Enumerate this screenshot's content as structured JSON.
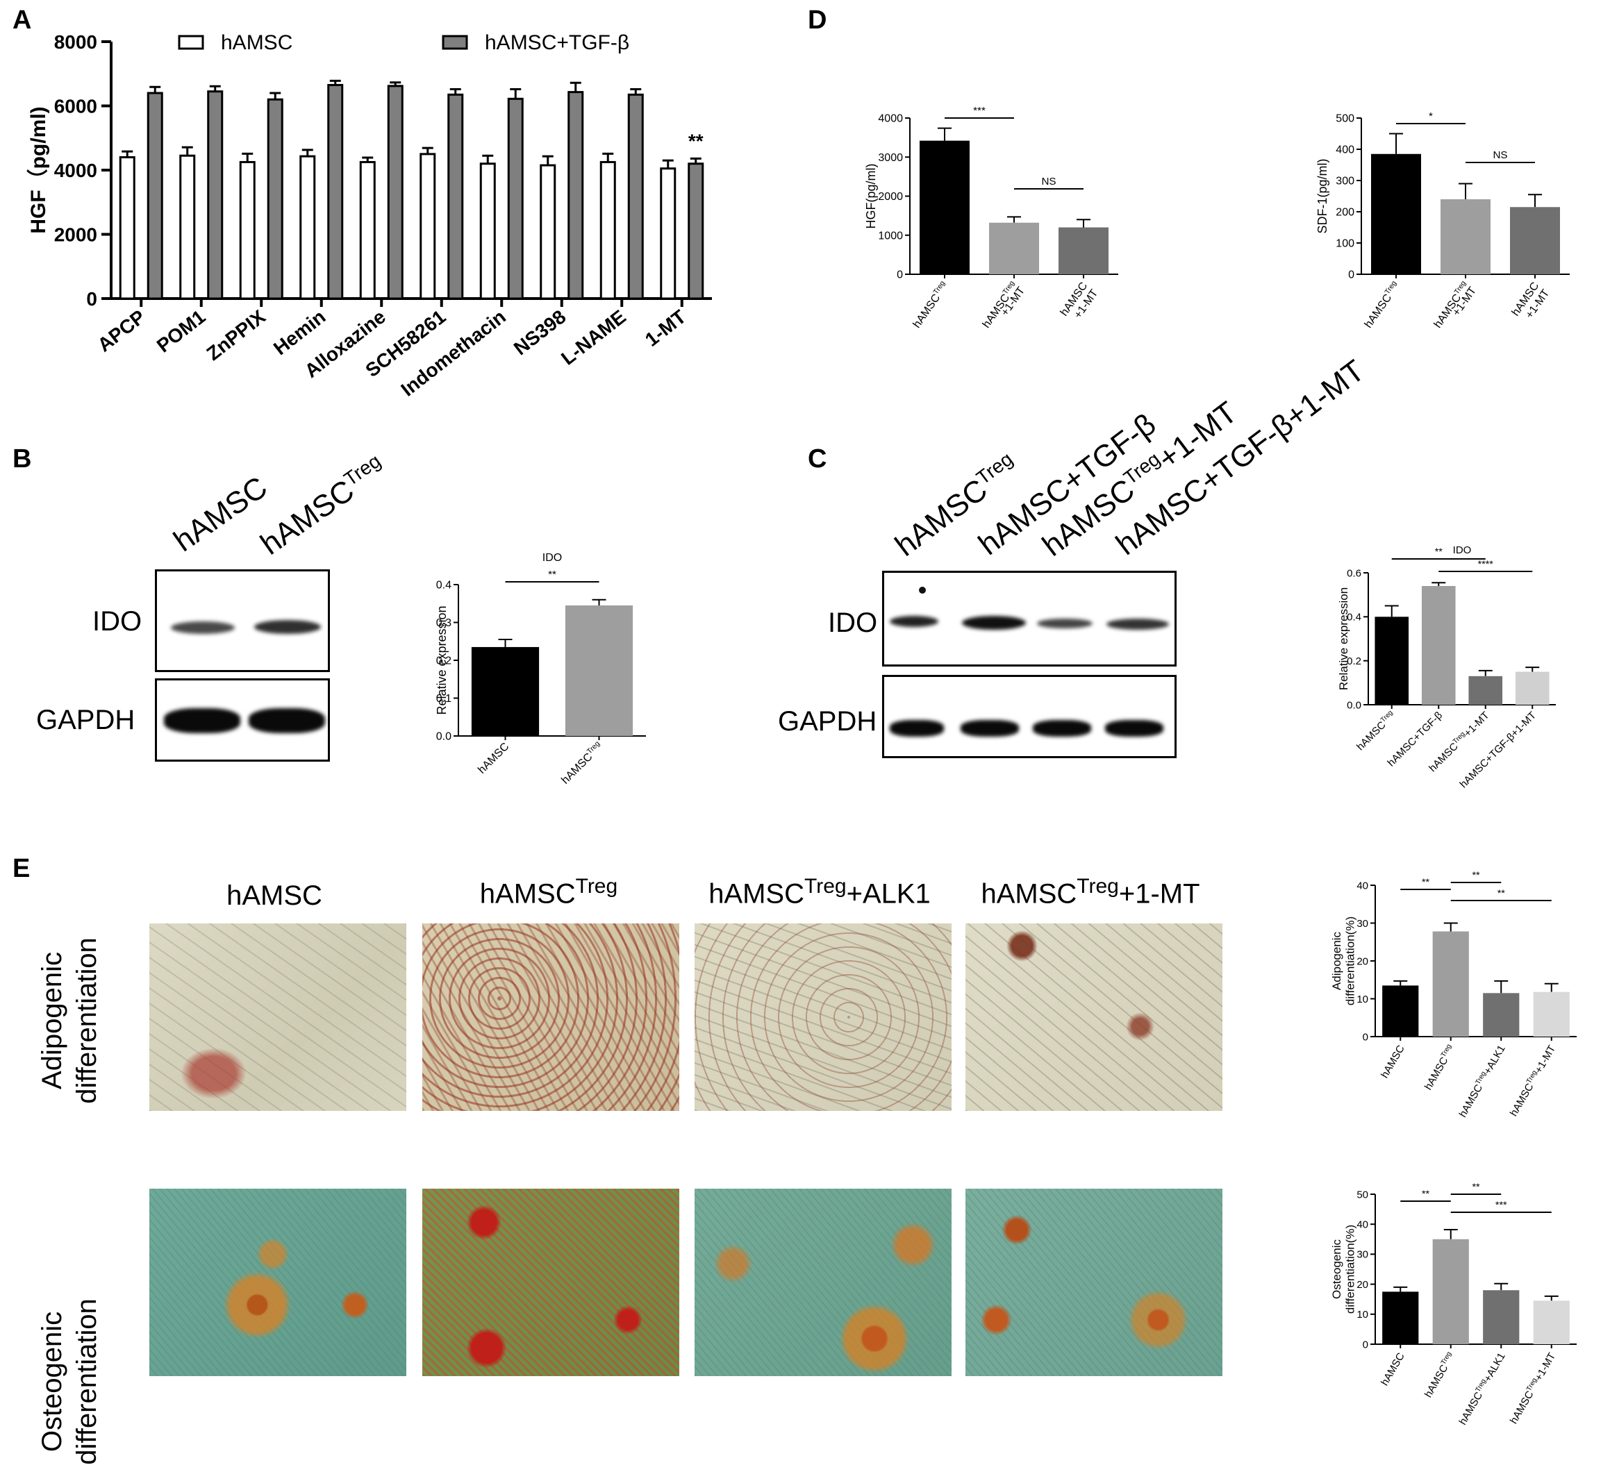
{
  "panels": {
    "A": "A",
    "B": "B",
    "C": "C",
    "D": "D",
    "E": "E"
  },
  "chart_data": [
    {
      "id": "A",
      "type": "bar",
      "ylabel": "HGF（pg/ml)",
      "ylim": [
        0,
        8000
      ],
      "yticks": [
        0,
        2000,
        4000,
        6000,
        8000
      ],
      "categories": [
        "APCP",
        "POM1",
        "ZnPPIX",
        "Hemin",
        "Alloxazine",
        "SCH58261",
        "Indomethacin",
        "NS398",
        "L-NAME",
        "1-MT"
      ],
      "series": [
        {
          "name": "hAMSC",
          "color": "#ffffff",
          "values": [
            4400,
            4450,
            4250,
            4430,
            4250,
            4500,
            4200,
            4150,
            4250,
            4050
          ],
          "errors": [
            180,
            260,
            260,
            200,
            140,
            190,
            250,
            280,
            260,
            250
          ]
        },
        {
          "name": "hAMSC+TGF-β",
          "color": "#7f7f7f",
          "values": [
            6400,
            6450,
            6200,
            6650,
            6620,
            6350,
            6220,
            6430,
            6350,
            4200
          ],
          "errors": [
            190,
            160,
            200,
            130,
            110,
            170,
            300,
            290,
            170,
            160
          ]
        }
      ],
      "annotations": [
        {
          "category": "1-MT",
          "text": "**"
        }
      ]
    },
    {
      "id": "B",
      "type": "bar",
      "title": "IDO",
      "ylabel": "Relative expression",
      "ylim": [
        0,
        0.4
      ],
      "yticks": [
        "0.0",
        "0.1",
        "0.2",
        "0.3",
        "0.4"
      ],
      "categories": [
        "hAMSC",
        "hAMSC^Treg"
      ],
      "values": [
        0.235,
        0.345
      ],
      "errors": [
        0.02,
        0.015
      ],
      "colors": [
        "#000000",
        "#9e9e9e"
      ],
      "significance": [
        {
          "from": 0,
          "to": 1,
          "text": "**"
        }
      ]
    },
    {
      "id": "C",
      "type": "bar",
      "title": "IDO",
      "ylabel": "Relative expression",
      "ylim": [
        0,
        0.6
      ],
      "yticks": [
        "0.0",
        "0.2",
        "0.4",
        "0.6"
      ],
      "categories": [
        "hAMSC^Treg",
        "hAMSC+TGF-β",
        "hAMSC^Treg+1-MT",
        "hAMSC+TGF-β+1-MT"
      ],
      "values": [
        0.4,
        0.54,
        0.13,
        0.15
      ],
      "errors": [
        0.05,
        0.015,
        0.025,
        0.02
      ],
      "colors": [
        "#000000",
        "#9e9e9e",
        "#707070",
        "#d0d0d0"
      ],
      "significance": [
        {
          "from": 0,
          "to": 2,
          "text": "**"
        },
        {
          "from": 1,
          "to": 3,
          "text": "****"
        }
      ]
    },
    {
      "id": "D1",
      "type": "bar",
      "ylabel": "HGF(pg/ml)",
      "ylim": [
        0,
        4000
      ],
      "yticks": [
        0,
        1000,
        2000,
        3000,
        4000
      ],
      "categories": [
        "hAMSC^Treg",
        "hAMSC^Treg|+1-MT",
        "hAMSC|+1-MT"
      ],
      "values": [
        3420,
        1320,
        1200
      ],
      "errors": [
        320,
        150,
        200
      ],
      "colors": [
        "#000000",
        "#9e9e9e",
        "#707070"
      ],
      "significance": [
        {
          "from": 0,
          "to": 1,
          "text": "***"
        },
        {
          "from": 1,
          "to": 2,
          "text": "NS"
        }
      ]
    },
    {
      "id": "D2",
      "type": "bar",
      "ylabel": "SDF-1(pg/ml)",
      "ylim": [
        0,
        500
      ],
      "yticks": [
        0,
        100,
        200,
        300,
        400,
        500
      ],
      "categories": [
        "hAMSC^Treg",
        "hAMSC^Treg|+1-MT",
        "hAMSC|+1-MT"
      ],
      "values": [
        385,
        240,
        215
      ],
      "errors": [
        65,
        50,
        40
      ],
      "colors": [
        "#000000",
        "#9e9e9e",
        "#707070"
      ],
      "significance": [
        {
          "from": 0,
          "to": 1,
          "text": "*"
        },
        {
          "from": 1,
          "to": 2,
          "text": "NS"
        }
      ]
    },
    {
      "id": "E1",
      "type": "bar",
      "ylabel": "Adipogenic|differentiation(%)",
      "ylim": [
        0,
        40
      ],
      "yticks": [
        0,
        10,
        20,
        30,
        40
      ],
      "categories": [
        "hAMSC",
        "hAMSC^Treg",
        "hAMSC^Treg+ALK1",
        "hAMSC^Treg+1-MT"
      ],
      "values": [
        13.5,
        27.8,
        11.5,
        11.8
      ],
      "errors": [
        1.2,
        2.2,
        3.2,
        2.2
      ],
      "colors": [
        "#000000",
        "#9e9e9e",
        "#707070",
        "#d9d9d9"
      ],
      "significance": [
        {
          "from": 0,
          "to": 1,
          "text": "**"
        },
        {
          "from": 1,
          "to": 2,
          "text": "**"
        },
        {
          "from": 1,
          "to": 3,
          "text": "**"
        }
      ]
    },
    {
      "id": "E2",
      "type": "bar",
      "ylabel": "Osteogenic|differentiation(%)",
      "ylim": [
        0,
        50
      ],
      "yticks": [
        0,
        10,
        20,
        30,
        40,
        50
      ],
      "categories": [
        "hAMSC",
        "hAMSC^Treg",
        "hAMSC^Treg+ALK1",
        "hAMSC^Treg+1-MT"
      ],
      "values": [
        17.5,
        35,
        18,
        14.5
      ],
      "errors": [
        1.5,
        3.2,
        2.2,
        1.5
      ],
      "colors": [
        "#000000",
        "#9e9e9e",
        "#707070",
        "#d9d9d9"
      ],
      "significance": [
        {
          "from": 0,
          "to": 1,
          "text": "**"
        },
        {
          "from": 1,
          "to": 2,
          "text": "**"
        },
        {
          "from": 1,
          "to": 3,
          "text": "***"
        }
      ]
    }
  ],
  "blotB": {
    "lanes": [
      "hAMSC",
      "hAMSC",
      "Treg"
    ],
    "rows": [
      "IDO",
      "GAPDH"
    ]
  },
  "blotC": {
    "lane1": {
      "base": "hAMSC",
      "sup": "Treg",
      "tail": ""
    },
    "lane2": {
      "base": "hAMSC+TGF-β",
      "sup": "",
      "tail": ""
    },
    "lane3": {
      "base": "hAMSC",
      "sup": "Treg",
      "tail": "+1-MT"
    },
    "lane4": {
      "base": "hAMSC+TGF-β+1-MT",
      "sup": "",
      "tail": ""
    },
    "rows": [
      "IDO",
      "GAPDH"
    ]
  },
  "micrographs": {
    "col1": {
      "base": "hAMSC",
      "sup": "",
      "tail": ""
    },
    "col2": {
      "base": "hAMSC",
      "sup": "Treg",
      "tail": ""
    },
    "col3": {
      "base": "hAMSC",
      "sup": "Treg",
      "tail": "+ALK1"
    },
    "col4": {
      "base": "hAMSC",
      "sup": "Treg",
      "tail": "+1-MT"
    },
    "row1": [
      "Adipogenic",
      "differentiation"
    ],
    "row2": [
      "Osteogenic",
      "differentiation"
    ]
  }
}
